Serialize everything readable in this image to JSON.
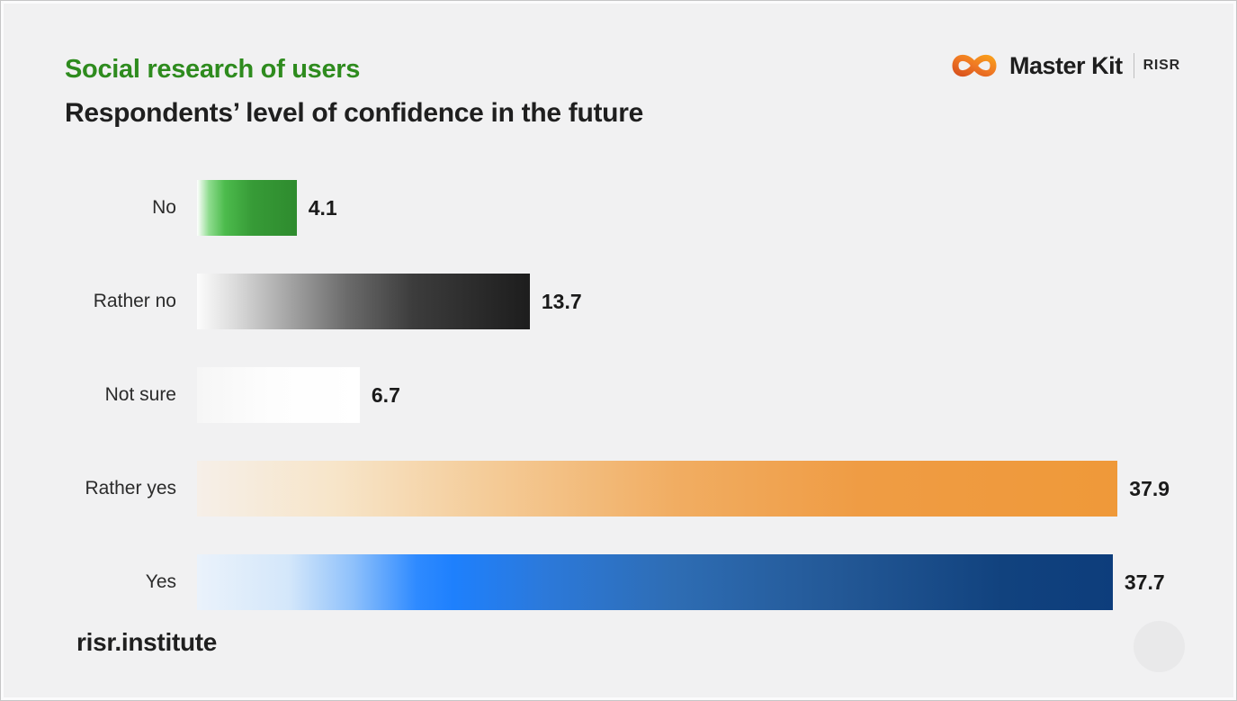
{
  "slide": {
    "background": "#f1f1f2",
    "border_color": "#c6c6c6"
  },
  "header": {
    "title": "Social research of users",
    "title_color": "#2e8b1e",
    "subtitle": "Respondents’ level of confidence in the future",
    "subtitle_color": "#1f1f1f"
  },
  "logo": {
    "icon": "infinity-icon",
    "icon_colors": [
      "#d9531e",
      "#ef7724",
      "#f89c1c"
    ],
    "brand": "Master Kit",
    "suffix": "RISR"
  },
  "footer": {
    "site": "risr.institute",
    "site_color": "#1f1f1f",
    "decorative_circle_color": "#e9e9ea"
  },
  "chart_data": {
    "type": "bar",
    "orientation": "horizontal",
    "title": "Respondents’ level of confidence in the future",
    "categories": [
      "No",
      "Rather no",
      "Not sure",
      "Rather yes",
      "Yes"
    ],
    "values": [
      4.1,
      13.7,
      6.7,
      37.9,
      37.7
    ],
    "xlim": [
      0,
      40
    ],
    "grid": false,
    "legend": false,
    "value_labels": true,
    "category_label_color": "#2b2b2b",
    "value_label_color": "#1a1a1a",
    "bar_gradients": [
      [
        "#ffffff 0%",
        "#8edc8e 12%",
        "#4cbb4c 28%",
        "#379b37 55%",
        "#2e8b2e 100%"
      ],
      [
        "#fcfcfc 0%",
        "#d9d9d9 12%",
        "#a3a3a3 28%",
        "#6b6b6b 45%",
        "#3c3c3c 65%",
        "#1d1d1d 100%"
      ],
      [
        "#f6f6f6 0%",
        "#fdfdfd 45%",
        "#ffffff 100%"
      ],
      [
        "#f6efe8 0%",
        "#f7e5c9 15%",
        "#f4cb97 32%",
        "#f1ad62 52%",
        "#ef9c44 72%",
        "#ef9939 100%"
      ],
      [
        "#eaf2fb 0%",
        "#d4e7fa 10%",
        "#8fc1fb 17%",
        "#2e8aff 24%",
        "#1e80fd 28%",
        "#2c79da 38%",
        "#2e6db4 52%",
        "#235896 70%",
        "#11427e 88%",
        "#0d3d7c 100%"
      ]
    ]
  }
}
